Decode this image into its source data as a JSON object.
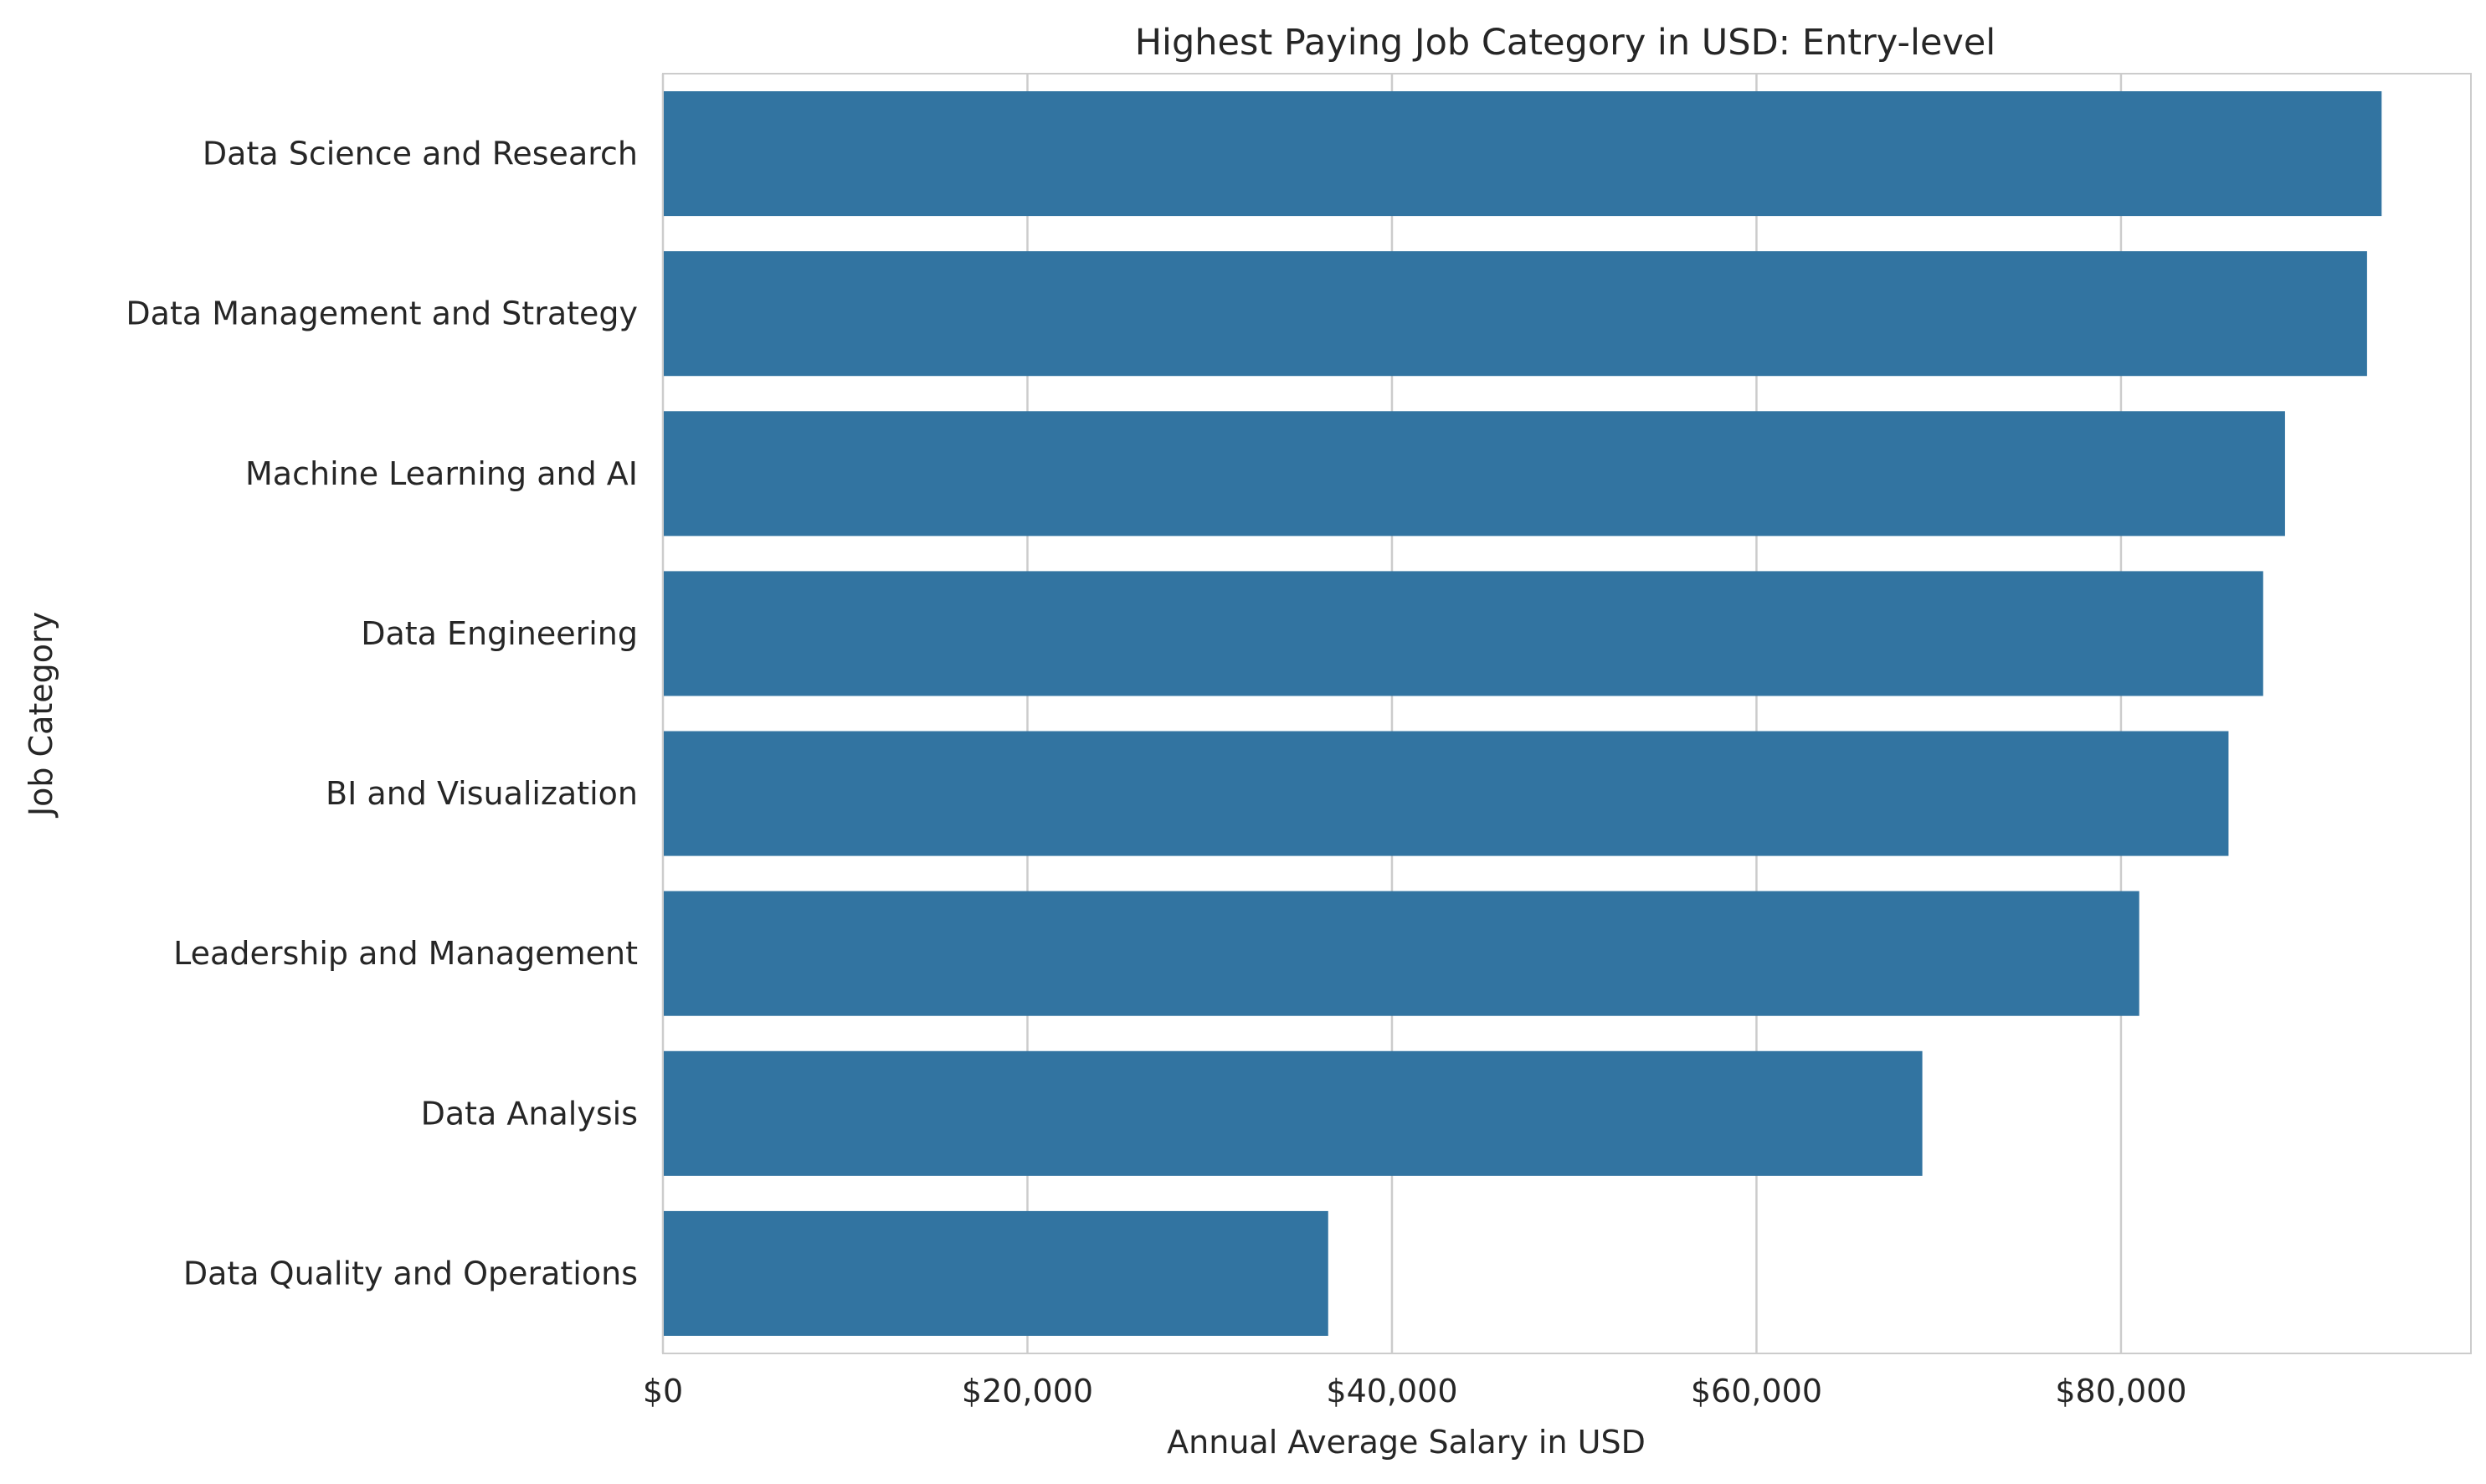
{
  "chart_data": {
    "type": "bar",
    "orientation": "horizontal",
    "title": "Highest Paying Job Category in USD: Entry-level",
    "xlabel": "Annual Average Salary in USD",
    "ylabel": "Job Category",
    "categories": [
      "Data Science and Research",
      "Data Management and Strategy",
      "Machine Learning and AI",
      "Data Engineering",
      "BI and Visualization",
      "Leadership and Management",
      "Data Analysis",
      "Data Quality and Operations"
    ],
    "values": [
      94300,
      93500,
      89000,
      87800,
      85900,
      81000,
      69100,
      36500
    ],
    "xlim": [
      0,
      99200
    ],
    "xticks": [
      0,
      20000,
      40000,
      60000,
      80000
    ],
    "xtick_labels": [
      "$0",
      "$20,000",
      "$40,000",
      "$60,000",
      "$80,000"
    ],
    "grid": true,
    "legend": "none",
    "bar_color": "#3274a1",
    "grid_color": "#cccccc",
    "spine_color": "#cccccc"
  }
}
